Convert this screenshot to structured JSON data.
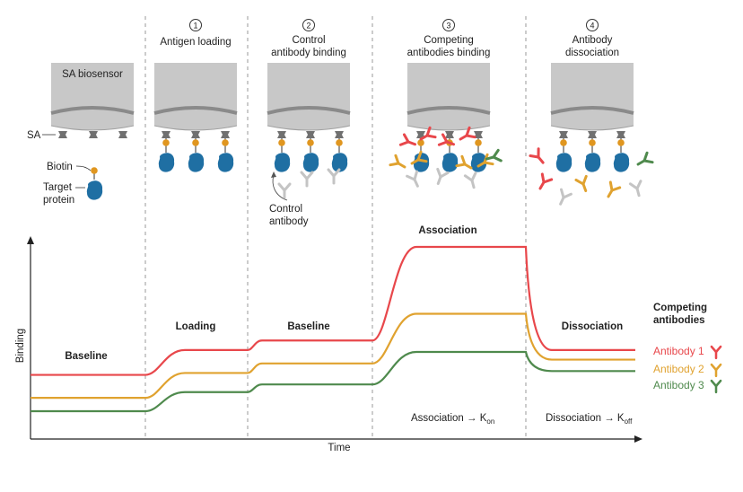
{
  "steps": [
    {
      "number": "1",
      "label_lines": [
        "Antigen loading"
      ]
    },
    {
      "number": "2",
      "label_lines": [
        "Control",
        "antibody binding"
      ]
    },
    {
      "number": "3",
      "label_lines": [
        "Competing",
        "antibodies binding"
      ]
    },
    {
      "number": "4",
      "label_lines": [
        "Antibody",
        "dissociation"
      ]
    }
  ],
  "sensor_label": "SA biosensor",
  "legend_left": {
    "sa": "SA",
    "biotin": "Biotin",
    "target_line1": "Target",
    "target_line2": "protein"
  },
  "control_antibody": {
    "line1": "Control",
    "line2": "antibody"
  },
  "phases": {
    "baseline1": "Baseline",
    "loading": "Loading",
    "baseline2": "Baseline",
    "association": "Association",
    "dissociation": "Dissociation"
  },
  "axes": {
    "x": "Time",
    "y": "Binding"
  },
  "kinetics": {
    "assoc_text": "Association → K",
    "assoc_sub": "on",
    "dissoc_text": "Dissociation → K",
    "dissoc_sub": "off"
  },
  "legend": {
    "title_line1": "Competing",
    "title_line2": "antibodies",
    "items": [
      {
        "label": "Antibody 1",
        "color": "#e8474b"
      },
      {
        "label": "Antibody 2",
        "color": "#e0a22f"
      },
      {
        "label": "Antibody 3",
        "color": "#4f8a4d"
      }
    ]
  },
  "colors": {
    "sensor": "#c8c8c8",
    "sensor_band": "#8a8a8a",
    "sa": "#707070",
    "biotin": "#e0961f",
    "protein": "#1f6fa3",
    "control_ab": "#c4c4c4",
    "divider": "#9a9a9a"
  },
  "chart_data": {
    "type": "line",
    "xlabel": "Time",
    "ylabel": "Binding",
    "phases": [
      "Baseline",
      "Loading",
      "Baseline",
      "Association",
      "Dissociation"
    ],
    "series": [
      {
        "name": "Antibody 1",
        "values": [
          0.21,
          0.21,
          0.34,
          0.34,
          0.39,
          0.39,
          0.88,
          0.88,
          0.34,
          0.34
        ]
      },
      {
        "name": "Antibody 2",
        "values": [
          0.09,
          0.09,
          0.22,
          0.22,
          0.27,
          0.27,
          0.53,
          0.53,
          0.29,
          0.29
        ]
      },
      {
        "name": "Antibody 3",
        "values": [
          0.02,
          0.02,
          0.12,
          0.12,
          0.16,
          0.16,
          0.33,
          0.33,
          0.23,
          0.23
        ]
      }
    ]
  }
}
